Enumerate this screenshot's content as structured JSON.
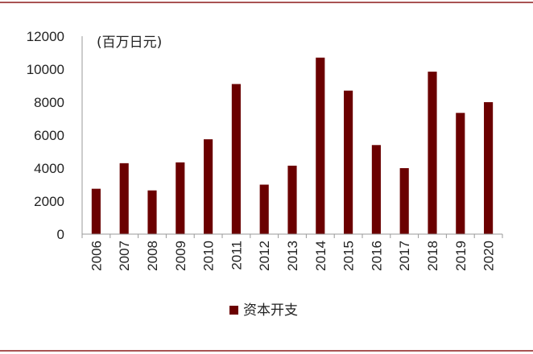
{
  "chart_data": {
    "type": "bar",
    "unit_label": "(百万日元)",
    "categories": [
      "2006",
      "2007",
      "2008",
      "2009",
      "2010",
      "2011",
      "2012",
      "2013",
      "2014",
      "2015",
      "2016",
      "2017",
      "2018",
      "2019",
      "2020"
    ],
    "series": [
      {
        "name": "资本开支",
        "values": [
          2750,
          4300,
          2650,
          4350,
          5750,
          9100,
          3000,
          4150,
          10700,
          8700,
          5400,
          4000,
          9850,
          7350,
          8000
        ]
      }
    ],
    "ylim": [
      0,
      12000
    ],
    "yticks": [
      0,
      2000,
      4000,
      6000,
      8000,
      10000,
      12000
    ],
    "grid": false,
    "legend_position": "bottom-center",
    "colors": {
      "bar": "#6b0000",
      "border": "#8b1a1a"
    }
  }
}
